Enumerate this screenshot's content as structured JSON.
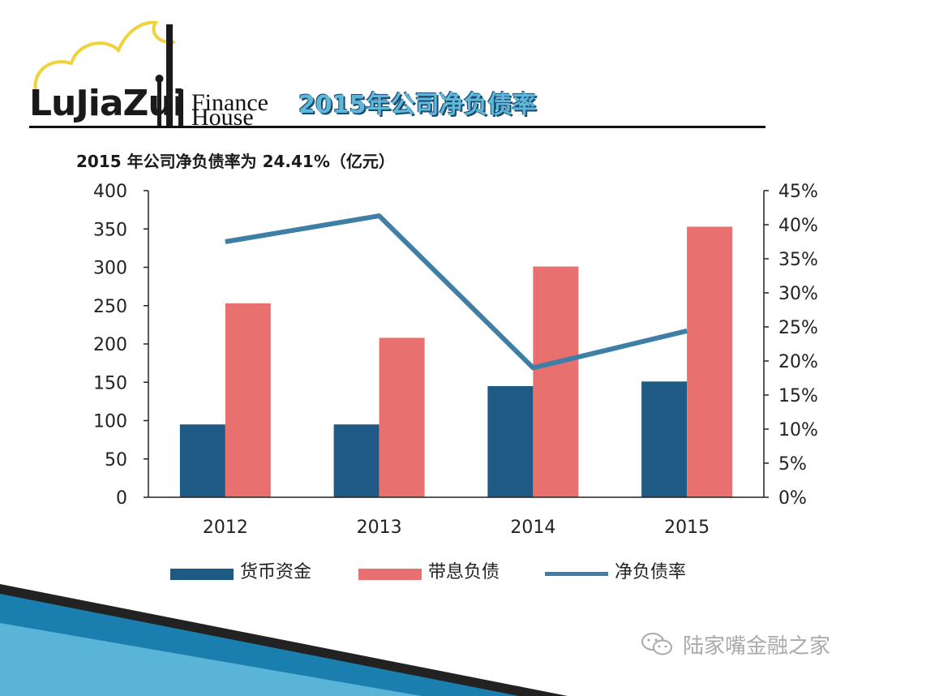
{
  "header": {
    "logo_word": "LuJiaZui",
    "logo_finance": "Finance",
    "logo_house": "House",
    "title": "2015年公司净负债率"
  },
  "subtitle": "2015 年公司净负债率为 24.41%（亿元）",
  "chart_data": {
    "type": "bar",
    "categories": [
      "2012",
      "2013",
      "2014",
      "2015"
    ],
    "series": [
      {
        "name": "货币资金",
        "type": "bar",
        "axis": "left",
        "color": "#1f5a85",
        "values": [
          95,
          95,
          145,
          151
        ]
      },
      {
        "name": "带息负债",
        "type": "bar",
        "axis": "left",
        "color": "#e8706e",
        "values": [
          253,
          208,
          301,
          353
        ]
      },
      {
        "name": "净负债率",
        "type": "line",
        "axis": "right",
        "color": "#3f7fa6",
        "values": [
          37.5,
          41.3,
          19.0,
          24.41
        ]
      }
    ],
    "y_left": {
      "min": 0,
      "max": 400,
      "ticks": [
        "0",
        "50",
        "100",
        "150",
        "200",
        "250",
        "300",
        "350",
        "400"
      ]
    },
    "y_right": {
      "min": 0,
      "max": 45,
      "ticks": [
        "0%",
        "5%",
        "10%",
        "15%",
        "20%",
        "25%",
        "30%",
        "35%",
        "40%",
        "45%"
      ]
    },
    "grid": false,
    "legend_position": "bottom"
  },
  "watermark": {
    "icon": "wechat-icon",
    "text": "陆家嘴金融之家"
  }
}
